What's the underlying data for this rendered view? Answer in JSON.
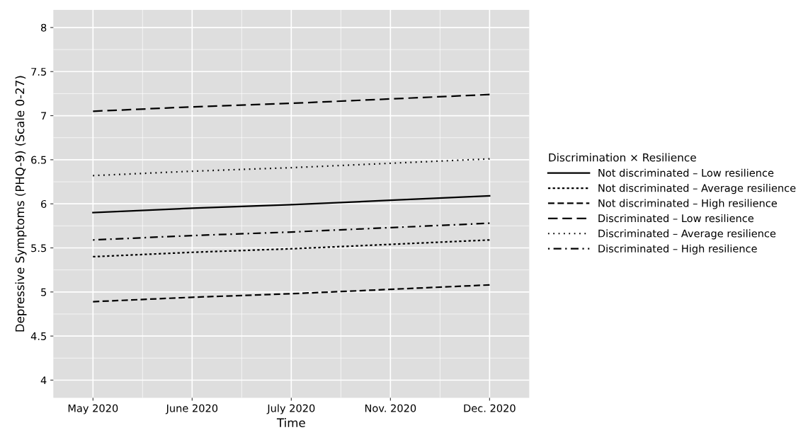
{
  "chart_data": {
    "type": "line",
    "xlabel": "Time",
    "ylabel": "Depressive Symptoms (PHQ-9) (Scale 0-27)",
    "legend_title": "Discrimination × Resilience",
    "categories": [
      "May 2020",
      "June 2020",
      "July 2020",
      "Nov. 2020",
      "Dec. 2020"
    ],
    "series": [
      {
        "name": "Not discriminated – Low resilience",
        "color": "#000000",
        "line_style": "solid",
        "values": [
          5.9,
          5.95,
          5.99,
          6.04,
          6.09
        ]
      },
      {
        "name": "Not discriminated – Average resilience",
        "color": "#000000",
        "line_style": "dense_dashed",
        "values": [
          5.4,
          5.45,
          5.49,
          5.54,
          5.59
        ]
      },
      {
        "name": "Not discriminated – High resilience",
        "color": "#000000",
        "line_style": "dashed",
        "values": [
          4.89,
          4.94,
          4.98,
          5.03,
          5.08
        ]
      },
      {
        "name": "Discriminated – Low resilience",
        "color": "#000000",
        "line_style": "long_dashed",
        "values": [
          7.05,
          7.1,
          7.14,
          7.19,
          7.24
        ]
      },
      {
        "name": "Discriminated – Average resilience",
        "color": "#000000",
        "line_style": "dotted",
        "values": [
          6.32,
          6.37,
          6.41,
          6.46,
          6.51
        ]
      },
      {
        "name": "Discriminated – High resilience",
        "color": "#000000",
        "line_style": "dashdot",
        "values": [
          5.59,
          5.64,
          5.68,
          5.73,
          5.78
        ]
      }
    ],
    "ylim": [
      3.8,
      8.2
    ],
    "yticks": [
      4,
      4.5,
      5,
      5.5,
      6,
      6.5,
      7,
      7.5,
      8
    ],
    "grid": true,
    "legend": "right",
    "marker": "none"
  }
}
